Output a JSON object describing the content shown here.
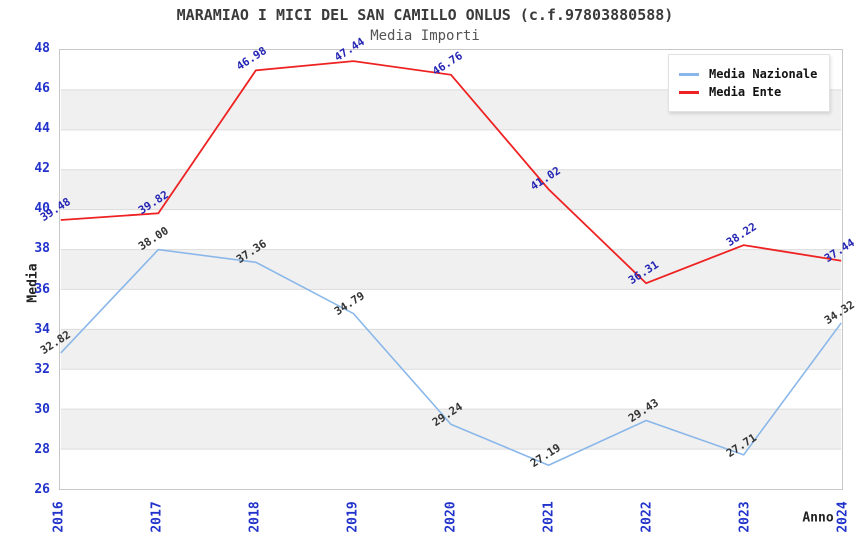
{
  "chart_data": {
    "type": "line",
    "title": "MARAMIAO I MICI DEL SAN CAMILLO ONLUS (c.f.97803880588)",
    "subtitle": "Media Importi",
    "xlabel": "Anno",
    "ylabel": "Media",
    "categories": [
      "2016",
      "2017",
      "2018",
      "2019",
      "2020",
      "2021",
      "2022",
      "2023",
      "2024"
    ],
    "series": [
      {
        "name": "Media Nazionale",
        "color": "#8ab7e9",
        "label_color": "#333333",
        "values": [
          32.82,
          38.0,
          37.36,
          34.79,
          29.24,
          27.19,
          29.43,
          27.71,
          34.32
        ]
      },
      {
        "name": "Media Ente",
        "color": "#ee2222",
        "label_color": "#2525b4",
        "values": [
          39.48,
          39.82,
          46.98,
          47.44,
          46.76,
          41.02,
          36.31,
          38.22,
          37.44
        ]
      }
    ],
    "ylim": [
      26,
      48
    ],
    "y_ticks": [
      48,
      46,
      44,
      42,
      40,
      38,
      36,
      34,
      32,
      30,
      28,
      26
    ],
    "grid": "horizontal-bands",
    "legend_position": "top-right",
    "colors": {
      "tick_label": "#2233cc",
      "band": "#f0f0f0",
      "gridline": "#dcdcdc",
      "plot_border": "#c8c8c8",
      "background": "#ffffff",
      "title": "#3a3a3a",
      "subtitle": "#555555"
    }
  }
}
